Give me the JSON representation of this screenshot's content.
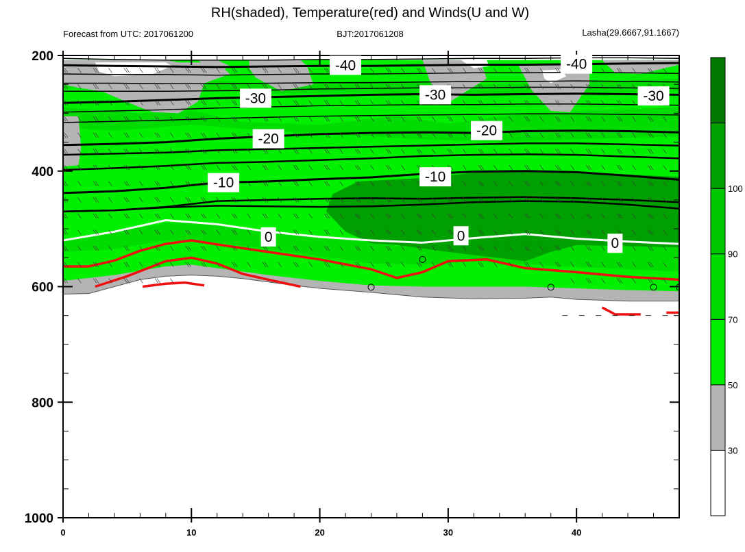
{
  "chart_data": {
    "type": "heatmap",
    "title": "RH(shaded), Temperature(red) and Winds(U and W)",
    "subtitle_left": "Forecast from UTC: 2017061200",
    "subtitle_center": "BJT:2017061208",
    "subtitle_right": "Lasha(29.6667,91.1667)",
    "xlabel": "",
    "ylabel": "",
    "xlim": [
      0,
      48
    ],
    "ylim": [
      1000,
      200
    ],
    "x_ticks": [
      0,
      10,
      20,
      30,
      40
    ],
    "y_ticks": [
      200,
      400,
      600,
      800,
      1000
    ],
    "colorbar": {
      "levels": [
        30,
        50,
        70,
        90,
        100
      ],
      "colors": [
        "#ffffff",
        "#b4b4b4",
        "#00f000",
        "#00dc00",
        "#00c800",
        "#00a000",
        "#007800"
      ]
    },
    "temperature_isotherms": [
      {
        "value": -40,
        "label": "-40",
        "pressures": [
          217,
          218,
          219,
          220,
          219,
          218,
          218,
          217,
          216,
          216,
          215,
          214,
          213
        ]
      },
      {
        "value": -30,
        "label": "-30",
        "pressures": [
          282,
          280,
          277,
          274,
          272,
          270,
          268,
          267,
          268,
          267,
          266,
          267,
          268
        ]
      },
      {
        "value": -20,
        "label": "-20",
        "pressures": [
          355,
          353,
          350,
          344,
          340,
          336,
          334,
          333,
          334,
          331,
          330,
          331,
          333
        ]
      },
      {
        "value": -10,
        "label": "-10",
        "pressures": [
          438,
          435,
          429,
          420,
          418,
          414,
          411,
          405,
          401,
          400,
          402,
          408,
          415
        ]
      },
      {
        "value": 0,
        "label": "0",
        "pressures": [
          520,
          505,
          485,
          492,
          505,
          514,
          520,
          524,
          516,
          509,
          517,
          522,
          526
        ]
      }
    ],
    "other_isotherm_pressures": [
      [
        205,
        207,
        208,
        208,
        208,
        207,
        207,
        206,
        205,
        205,
        204,
        204,
        205
      ],
      [
        232,
        233,
        233,
        234,
        233,
        232,
        232,
        231,
        230,
        230,
        229,
        230,
        231
      ],
      [
        248,
        248,
        249,
        249,
        248,
        247,
        247,
        246,
        245,
        245,
        244,
        245,
        246
      ],
      [
        262,
        262,
        262,
        261,
        260,
        258,
        257,
        256,
        256,
        255,
        255,
        256,
        257
      ],
      [
        298,
        296,
        294,
        291,
        289,
        287,
        286,
        285,
        285,
        284,
        284,
        285,
        286
      ],
      [
        316,
        314,
        312,
        309,
        307,
        305,
        304,
        303,
        302,
        301,
        301,
        302,
        303
      ],
      [
        372,
        370,
        368,
        364,
        362,
        360,
        358,
        356,
        354,
        352,
        352,
        354,
        356
      ],
      [
        398,
        395,
        391,
        386,
        384,
        381,
        378,
        374,
        372,
        371,
        372,
        375,
        378
      ],
      [
        470,
        468,
        462,
        452,
        450,
        448,
        447,
        448,
        446,
        445,
        447,
        450,
        454
      ],
      [
        470,
        468,
        463,
        460,
        461,
        462,
        461,
        458,
        454,
        452,
        453,
        458,
        465
      ]
    ],
    "red_contours": [
      {
        "x": [
          0,
          2,
          4,
          6,
          8,
          10,
          12,
          16,
          20,
          24,
          26,
          28,
          30,
          33,
          36,
          40,
          44,
          48
        ],
        "p": [
          565,
          565,
          555,
          538,
          526,
          520,
          527,
          540,
          553,
          570,
          585,
          575,
          556,
          553,
          568,
          575,
          583,
          588
        ]
      },
      {
        "x": [
          2.5,
          5,
          8,
          10,
          12,
          14,
          16,
          18.5
        ],
        "p": [
          600,
          582,
          556,
          550,
          560,
          578,
          588,
          600
        ]
      },
      {
        "x": [
          6.2,
          8,
          9.5,
          11
        ],
        "p": [
          600,
          595,
          593,
          598
        ]
      },
      {
        "x": [
          42,
          43,
          45
        ],
        "p": [
          636,
          648,
          648
        ]
      },
      {
        "x": [
          47,
          48
        ],
        "p": [
          645,
          645
        ]
      }
    ],
    "terrain_pressures": [
      613,
      612,
      600,
      588,
      582,
      580,
      582,
      586,
      592,
      598,
      603,
      610,
      618,
      621,
      620,
      618,
      622,
      625,
      625
    ],
    "terrain_x": [
      0,
      2,
      4,
      6,
      8,
      10,
      12,
      14,
      16,
      18,
      20,
      24,
      28,
      32,
      36,
      38,
      40,
      44,
      48
    ]
  }
}
